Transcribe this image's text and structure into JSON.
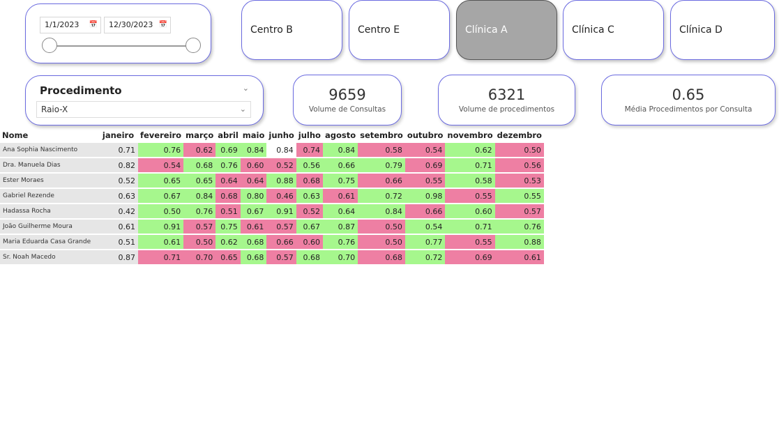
{
  "date_slicer": {
    "start": "1/1/2023",
    "end": "12/30/2023"
  },
  "buttons": [
    {
      "label": "Centro B",
      "active": false
    },
    {
      "label": "Centro E",
      "active": false
    },
    {
      "label": "Clínica A",
      "active": true
    },
    {
      "label": "Clínica C",
      "active": false
    },
    {
      "label": "Clínica D",
      "active": false
    }
  ],
  "procedimento": {
    "title": "Procedimento",
    "selected": "Raio-X"
  },
  "kpis": [
    {
      "value": "9659",
      "label": "Volume de Consultas"
    },
    {
      "value": "6321",
      "label": "Volume de procedimentos"
    },
    {
      "value": "0.65",
      "label": "Média Procedimentos por Consulta"
    }
  ],
  "table": {
    "headers": [
      "Nome",
      "janeiro",
      "fevereiro",
      "março",
      "abril",
      "maio",
      "junho",
      "julho",
      "agosto",
      "setembro",
      "outubro",
      "novembro",
      "dezembro"
    ],
    "rows": [
      {
        "name": "Ana Sophia Nascimento",
        "values": [
          "0.71",
          "0.76",
          "0.62",
          "0.69",
          "0.84",
          "0.84",
          "0.74",
          "0.84",
          "0.58",
          "0.54",
          "0.62",
          "0.50"
        ],
        "colors": [
          "j",
          "g",
          "r",
          "g",
          "g",
          "w",
          "r",
          "g",
          "r",
          "r",
          "g",
          "r"
        ]
      },
      {
        "name": "Dra. Manuela Dias",
        "values": [
          "0.82",
          "0.54",
          "0.68",
          "0.76",
          "0.60",
          "0.52",
          "0.56",
          "0.66",
          "0.79",
          "0.69",
          "0.71",
          "0.56"
        ],
        "colors": [
          "j",
          "r",
          "g",
          "g",
          "r",
          "r",
          "g",
          "g",
          "g",
          "r",
          "g",
          "r"
        ]
      },
      {
        "name": "Ester Moraes",
        "values": [
          "0.52",
          "0.65",
          "0.65",
          "0.64",
          "0.64",
          "0.88",
          "0.68",
          "0.75",
          "0.66",
          "0.55",
          "0.58",
          "0.53"
        ],
        "colors": [
          "j",
          "g",
          "g",
          "r",
          "r",
          "g",
          "r",
          "g",
          "r",
          "r",
          "g",
          "r"
        ]
      },
      {
        "name": "Gabriel Rezende",
        "values": [
          "0.63",
          "0.67",
          "0.84",
          "0.68",
          "0.80",
          "0.46",
          "0.63",
          "0.61",
          "0.72",
          "0.98",
          "0.55",
          "0.55"
        ],
        "colors": [
          "j",
          "g",
          "g",
          "r",
          "g",
          "r",
          "g",
          "r",
          "g",
          "g",
          "r",
          "g"
        ]
      },
      {
        "name": "Hadassa Rocha",
        "values": [
          "0.42",
          "0.50",
          "0.76",
          "0.51",
          "0.67",
          "0.91",
          "0.52",
          "0.64",
          "0.84",
          "0.66",
          "0.60",
          "0.57"
        ],
        "colors": [
          "j",
          "g",
          "g",
          "r",
          "g",
          "g",
          "r",
          "g",
          "g",
          "r",
          "g",
          "r"
        ]
      },
      {
        "name": "João Guilherme Moura",
        "values": [
          "0.61",
          "0.91",
          "0.57",
          "0.75",
          "0.61",
          "0.57",
          "0.67",
          "0.87",
          "0.50",
          "0.54",
          "0.71",
          "0.76"
        ],
        "colors": [
          "j",
          "g",
          "r",
          "g",
          "r",
          "r",
          "g",
          "g",
          "r",
          "g",
          "g",
          "g"
        ]
      },
      {
        "name": "Maria Eduarda Casa Grande",
        "values": [
          "0.51",
          "0.61",
          "0.50",
          "0.62",
          "0.68",
          "0.66",
          "0.60",
          "0.76",
          "0.50",
          "0.77",
          "0.55",
          "0.88"
        ],
        "colors": [
          "j",
          "g",
          "r",
          "g",
          "g",
          "r",
          "r",
          "g",
          "r",
          "g",
          "r",
          "g"
        ]
      },
      {
        "name": "Sr. Noah Macedo",
        "values": [
          "0.87",
          "0.71",
          "0.70",
          "0.65",
          "0.68",
          "0.57",
          "0.68",
          "0.70",
          "0.68",
          "0.72",
          "0.69",
          "0.61"
        ],
        "colors": [
          "j",
          "r",
          "r",
          "r",
          "g",
          "r",
          "g",
          "g",
          "r",
          "g",
          "r",
          "r"
        ]
      }
    ]
  },
  "colors": {
    "accent_border": "#6a6ae0",
    "active_button": "#a6a6a6",
    "good": "#a6f78d",
    "bad": "#ee7fa3",
    "neutral": "#e6e6e6"
  }
}
